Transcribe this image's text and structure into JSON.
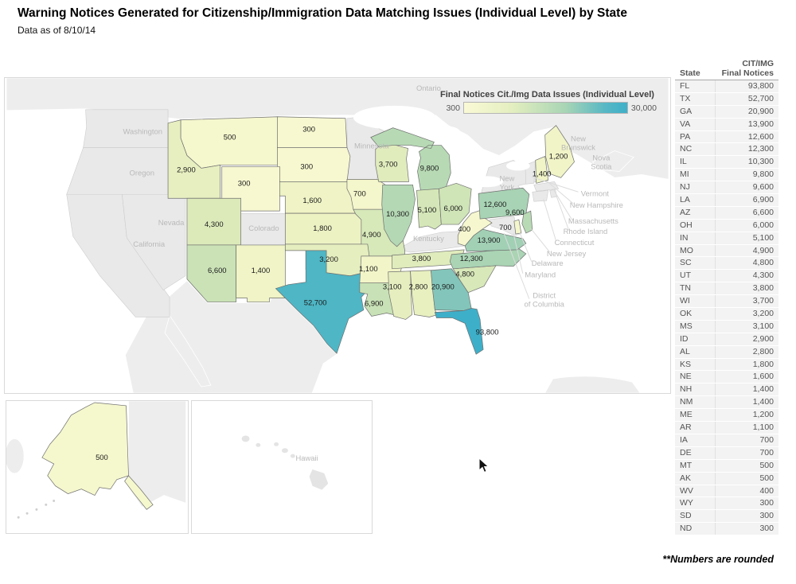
{
  "title": "Warning Notices Generated for Citizenship/Immigration Data Matching Issues (Individual Level) by State",
  "subtitle": "Data as of 8/10/14",
  "footnote": "**Numbers are rounded",
  "legend": {
    "title": "Final Notices Cit./Img Data Issues (Individual Level)",
    "min_label": "300",
    "max_label": "30,000",
    "gradient": [
      "#fafad6",
      "#e3eebf",
      "#a8d5b5",
      "#58b8c4",
      "#3fb0c9"
    ]
  },
  "table": {
    "state_header": "State",
    "value_header_line1": "CIT/IMG",
    "value_header_line2": "Final Notices",
    "rows": [
      {
        "state": "FL",
        "value": "93,800"
      },
      {
        "state": "TX",
        "value": "52,700"
      },
      {
        "state": "GA",
        "value": "20,900"
      },
      {
        "state": "VA",
        "value": "13,900"
      },
      {
        "state": "PA",
        "value": "12,600"
      },
      {
        "state": "NC",
        "value": "12,300"
      },
      {
        "state": "IL",
        "value": "10,300"
      },
      {
        "state": "MI",
        "value": "9,800"
      },
      {
        "state": "NJ",
        "value": "9,600"
      },
      {
        "state": "LA",
        "value": "6,900"
      },
      {
        "state": "AZ",
        "value": "6,600"
      },
      {
        "state": "OH",
        "value": "6,000"
      },
      {
        "state": "IN",
        "value": "5,100"
      },
      {
        "state": "MO",
        "value": "4,900"
      },
      {
        "state": "SC",
        "value": "4,800"
      },
      {
        "state": "UT",
        "value": "4,300"
      },
      {
        "state": "TN",
        "value": "3,800"
      },
      {
        "state": "WI",
        "value": "3,700"
      },
      {
        "state": "OK",
        "value": "3,200"
      },
      {
        "state": "MS",
        "value": "3,100"
      },
      {
        "state": "ID",
        "value": "2,900"
      },
      {
        "state": "AL",
        "value": "2,800"
      },
      {
        "state": "KS",
        "value": "1,800"
      },
      {
        "state": "NE",
        "value": "1,600"
      },
      {
        "state": "NH",
        "value": "1,400"
      },
      {
        "state": "NM",
        "value": "1,400"
      },
      {
        "state": "ME",
        "value": "1,200"
      },
      {
        "state": "AR",
        "value": "1,100"
      },
      {
        "state": "IA",
        "value": "700"
      },
      {
        "state": "DE",
        "value": "700"
      },
      {
        "state": "MT",
        "value": "500"
      },
      {
        "state": "AK",
        "value": "500"
      },
      {
        "state": "WV",
        "value": "400"
      },
      {
        "state": "WY",
        "value": "300"
      },
      {
        "state": "SD",
        "value": "300"
      },
      {
        "state": "ND",
        "value": "300"
      }
    ]
  },
  "chart_data": {
    "type": "choropleth",
    "title": "Warning Notices Generated for Citizenship/Immigration Data Matching Issues (Individual Level) by State",
    "legend_title": "Final Notices Cit./Img Data Issues (Individual Level)",
    "scale": {
      "min": 300,
      "max": 30000,
      "min_label": "300",
      "max_label": "30,000"
    },
    "states": [
      {
        "abbr": "MT",
        "name": "Montana",
        "value": 500,
        "label": "500",
        "color": "#f5f7cd"
      },
      {
        "abbr": "ND",
        "name": "North Dakota",
        "value": 300,
        "label": "300",
        "color": "#f7f8d0"
      },
      {
        "abbr": "SD",
        "name": "South Dakota",
        "value": 300,
        "label": "300",
        "color": "#f7f8d0"
      },
      {
        "abbr": "WY",
        "name": "Wyoming",
        "value": 300,
        "label": "300",
        "color": "#f7f8d0"
      },
      {
        "abbr": "ID",
        "name": "Idaho",
        "value": 2900,
        "label": "2,900",
        "color": "#e7efc0"
      },
      {
        "abbr": "NE",
        "name": "Nebraska",
        "value": 1600,
        "label": "1,600",
        "color": "#eff3c5"
      },
      {
        "abbr": "IA",
        "name": "Iowa",
        "value": 700,
        "label": "700",
        "color": "#f4f6cb"
      },
      {
        "abbr": "KS",
        "name": "Kansas",
        "value": 1800,
        "label": "1,800",
        "color": "#edf2c3"
      },
      {
        "abbr": "MO",
        "name": "Missouri",
        "value": 4900,
        "label": "4,900",
        "color": "#d7e8b9"
      },
      {
        "abbr": "UT",
        "name": "Utah",
        "value": 4300,
        "label": "4,300",
        "color": "#dceaba"
      },
      {
        "abbr": "AZ",
        "name": "Arizona",
        "value": 6600,
        "label": "6,600",
        "color": "#cae2b6"
      },
      {
        "abbr": "NM",
        "name": "New Mexico",
        "value": 1400,
        "label": "1,400",
        "color": "#f0f4c6"
      },
      {
        "abbr": "OK",
        "name": "Oklahoma",
        "value": 3200,
        "label": "3,200",
        "color": "#e5eebe"
      },
      {
        "abbr": "TX",
        "name": "Texas",
        "value": 52700,
        "label": "52,700",
        "color": "#4eb6c5"
      },
      {
        "abbr": "AR",
        "name": "Arkansas",
        "value": 1100,
        "label": "1,100",
        "color": "#f2f5c8"
      },
      {
        "abbr": "LA",
        "name": "Louisiana",
        "value": 6900,
        "label": "6,900",
        "color": "#c8e1b6"
      },
      {
        "abbr": "WI",
        "name": "Wisconsin",
        "value": 3700,
        "label": "3,700",
        "color": "#e1ecbd"
      },
      {
        "abbr": "MI",
        "name": "Michigan",
        "value": 9800,
        "label": "9,800",
        "color": "#b7dab4"
      },
      {
        "abbr": "IL",
        "name": "Illinois",
        "value": 10300,
        "label": "10,300",
        "color": "#b4d8b4"
      },
      {
        "abbr": "IN",
        "name": "Indiana",
        "value": 5100,
        "label": "5,100",
        "color": "#d5e7b8"
      },
      {
        "abbr": "OH",
        "name": "Ohio",
        "value": 6000,
        "label": "6,000",
        "color": "#cfe4b7"
      },
      {
        "abbr": "TN",
        "name": "Tennessee",
        "value": 3800,
        "label": "3,800",
        "color": "#e0ecbc"
      },
      {
        "abbr": "MS",
        "name": "Mississippi",
        "value": 3100,
        "label": "3,100",
        "color": "#e6eebf"
      },
      {
        "abbr": "AL",
        "name": "Alabama",
        "value": 2800,
        "label": "2,800",
        "color": "#e8f0c0"
      },
      {
        "abbr": "GA",
        "name": "Georgia",
        "value": 20900,
        "label": "20,900",
        "color": "#83c5ba"
      },
      {
        "abbr": "FL",
        "name": "Florida",
        "value": 93800,
        "label": "93,800",
        "color": "#3eafc9"
      },
      {
        "abbr": "SC",
        "name": "South Carolina",
        "value": 4800,
        "label": "4,800",
        "color": "#d8e8b9"
      },
      {
        "abbr": "NC",
        "name": "North Carolina",
        "value": 12300,
        "label": "12,300",
        "color": "#aad4b4"
      },
      {
        "abbr": "VA",
        "name": "Virginia",
        "value": 13900,
        "label": "13,900",
        "color": "#a1d0b5"
      },
      {
        "abbr": "WV",
        "name": "West Virginia",
        "value": 400,
        "label": "400",
        "color": "#f6f7cf"
      },
      {
        "abbr": "PA",
        "name": "Pennsylvania",
        "value": 12600,
        "label": "12,600",
        "color": "#a8d3b4"
      },
      {
        "abbr": "NJ",
        "name": "New Jersey",
        "value": 9600,
        "label": "9,600",
        "color": "#b8dab4"
      },
      {
        "abbr": "DE",
        "name": "Delaware",
        "value": 700,
        "label": "700",
        "color": "#f4f6cb"
      },
      {
        "abbr": "ME",
        "name": "Maine",
        "value": 1200,
        "label": "1,200",
        "color": "#f1f4c7"
      },
      {
        "abbr": "NH",
        "name": "New Hampshire",
        "value": 1400,
        "label": "1,400",
        "color": "#f0f4c6"
      },
      {
        "abbr": "AK",
        "name": "Alaska",
        "value": 500,
        "label": "500",
        "color": "#f5f7cd"
      }
    ],
    "no_data_states": [
      "Washington",
      "Oregon",
      "California",
      "Nevada",
      "Colorado",
      "Minnesota",
      "Kentucky",
      "New York",
      "Vermont",
      "Massachusetts",
      "Rhode Island",
      "Connecticut",
      "Maryland",
      "District of Columbia",
      "Hawaii"
    ],
    "background_labels": [
      {
        "id": "ontario",
        "text": "Ontario"
      },
      {
        "id": "washington",
        "text": "Washington"
      },
      {
        "id": "oregon",
        "text": "Oregon"
      },
      {
        "id": "california",
        "text": "California"
      },
      {
        "id": "nevada",
        "text": "Nevada"
      },
      {
        "id": "colorado",
        "text": "Colorado"
      },
      {
        "id": "minnesota",
        "text": "Minnesota"
      },
      {
        "id": "kentucky",
        "text": "Kentucky"
      },
      {
        "id": "new-york",
        "text": "New York"
      },
      {
        "id": "new-brunswick",
        "text": "New Brunswick"
      },
      {
        "id": "nova-scotia",
        "text": "Nova Scotia"
      },
      {
        "id": "vermont",
        "text": "Vermont"
      },
      {
        "id": "new-hampshire",
        "text": "New Hampshire"
      },
      {
        "id": "massachusetts",
        "text": "Massachusetts"
      },
      {
        "id": "rhode-island",
        "text": "Rhode Island"
      },
      {
        "id": "connecticut",
        "text": "Connecticut"
      },
      {
        "id": "new-jersey",
        "text": "New Jersey"
      },
      {
        "id": "delaware",
        "text": "Delaware"
      },
      {
        "id": "maryland",
        "text": "Maryland"
      },
      {
        "id": "district-of-columbia",
        "text": "District of Columbia"
      },
      {
        "id": "hawaii",
        "text": "Hawaii"
      }
    ]
  }
}
